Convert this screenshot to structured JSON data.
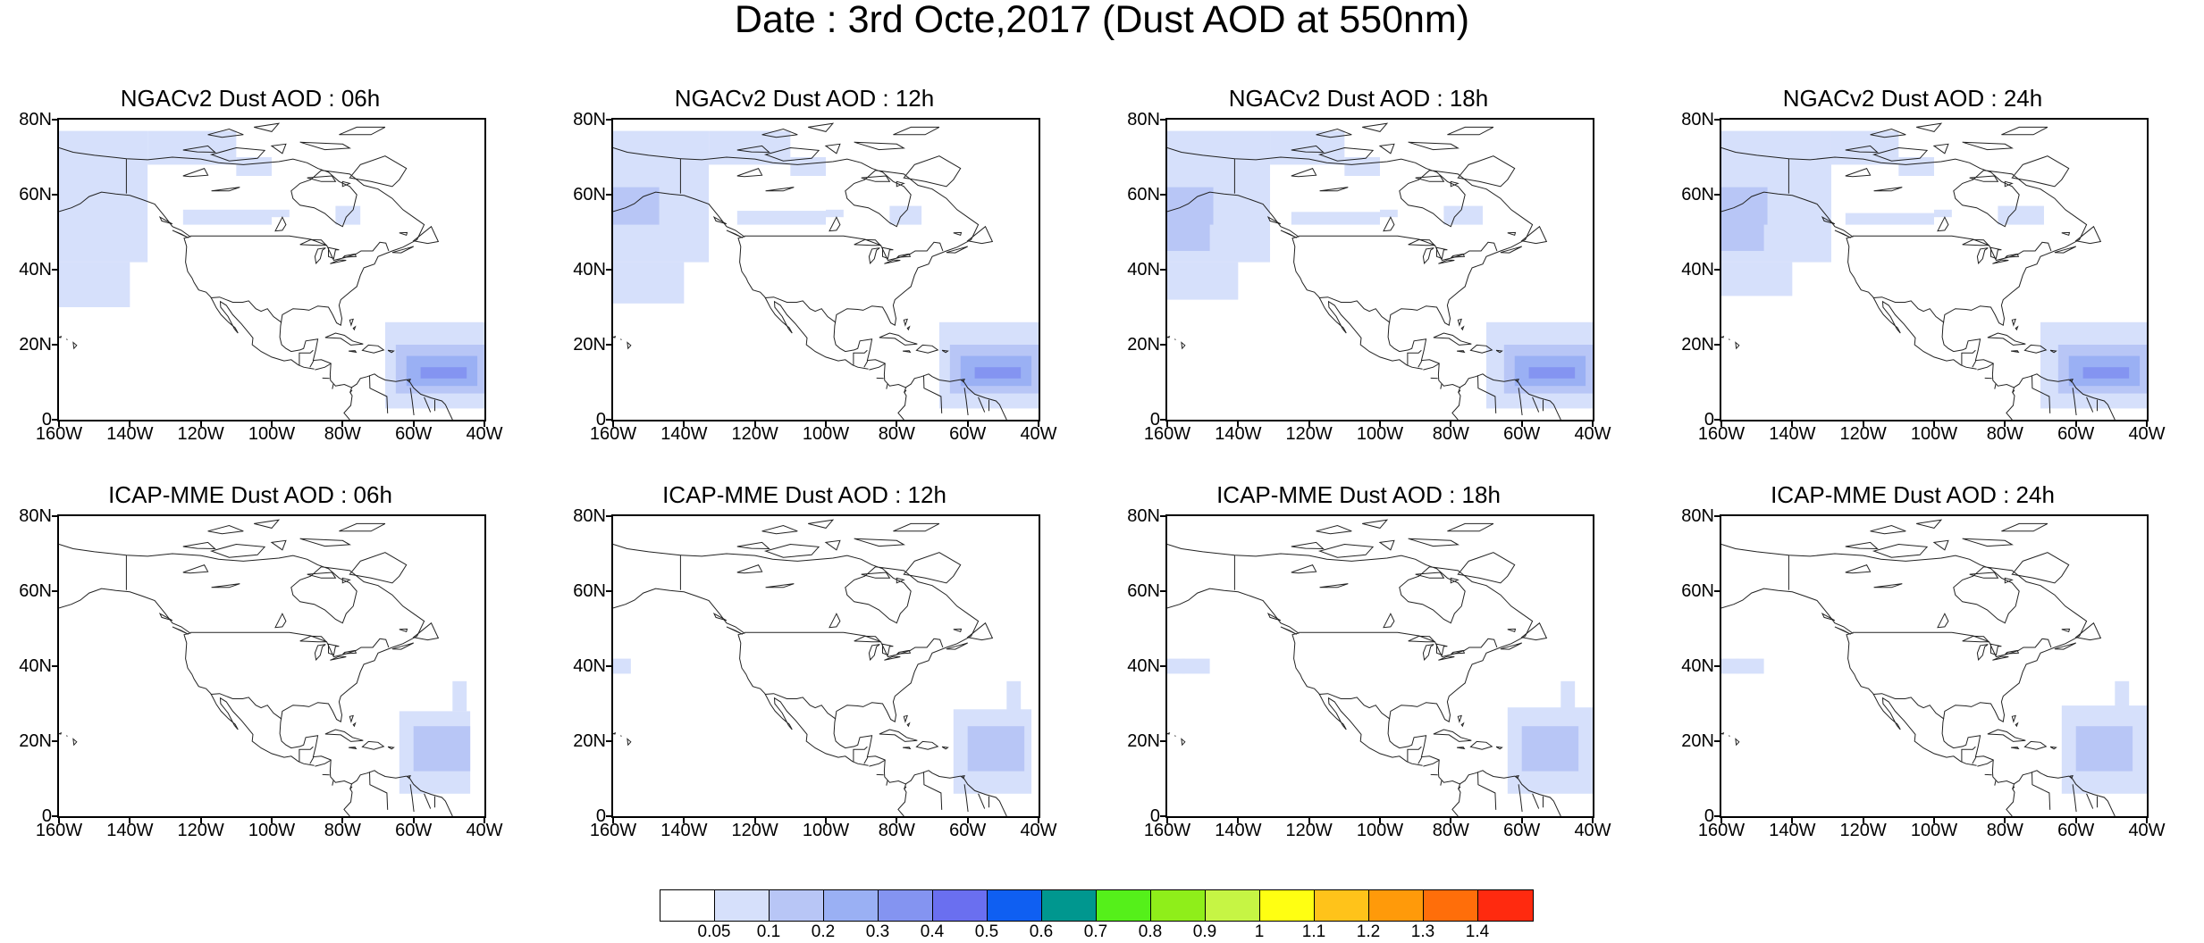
{
  "title": "Date : 3rd Octe,2017 (Dust AOD at 550nm)",
  "lat_labels": [
    "80N",
    "60N",
    "40N",
    "20N",
    "0"
  ],
  "lon_labels": [
    "160W",
    "140W",
    "120W",
    "100W",
    "80W",
    "60W",
    "40W"
  ],
  "panels": [
    {
      "title": "NGACv2 Dust AOD : 06h",
      "model": "NGACv2",
      "hour": "06h"
    },
    {
      "title": "NGACv2 Dust AOD : 12h",
      "model": "NGACv2",
      "hour": "12h"
    },
    {
      "title": "NGACv2 Dust AOD : 18h",
      "model": "NGACv2",
      "hour": "18h"
    },
    {
      "title": "NGACv2 Dust AOD : 24h",
      "model": "NGACv2",
      "hour": "24h"
    },
    {
      "title": "ICAP-MME Dust AOD : 06h",
      "model": "ICAP-MME",
      "hour": "06h"
    },
    {
      "title": "ICAP-MME Dust AOD : 12h",
      "model": "ICAP-MME",
      "hour": "12h"
    },
    {
      "title": "ICAP-MME Dust AOD : 18h",
      "model": "ICAP-MME",
      "hour": "18h"
    },
    {
      "title": "ICAP-MME Dust AOD : 24h",
      "model": "ICAP-MME",
      "hour": "24h"
    }
  ],
  "colorbar": {
    "labels": [
      "0.05",
      "0.1",
      "0.2",
      "0.3",
      "0.4",
      "0.5",
      "0.6",
      "0.7",
      "0.8",
      "0.9",
      "1",
      "1.1",
      "1.2",
      "1.3",
      "1.4"
    ],
    "colors": [
      "#ffffff",
      "#d6e0fb",
      "#b8c6f6",
      "#9ab0f4",
      "#8494f1",
      "#6a6ff0",
      "#0f5ff2",
      "#00978f",
      "#55f01a",
      "#8fee1a",
      "#c6f544",
      "#ffff12",
      "#ffc31a",
      "#ff9a0a",
      "#ff6e0a",
      "#ff2a0f"
    ]
  }
}
